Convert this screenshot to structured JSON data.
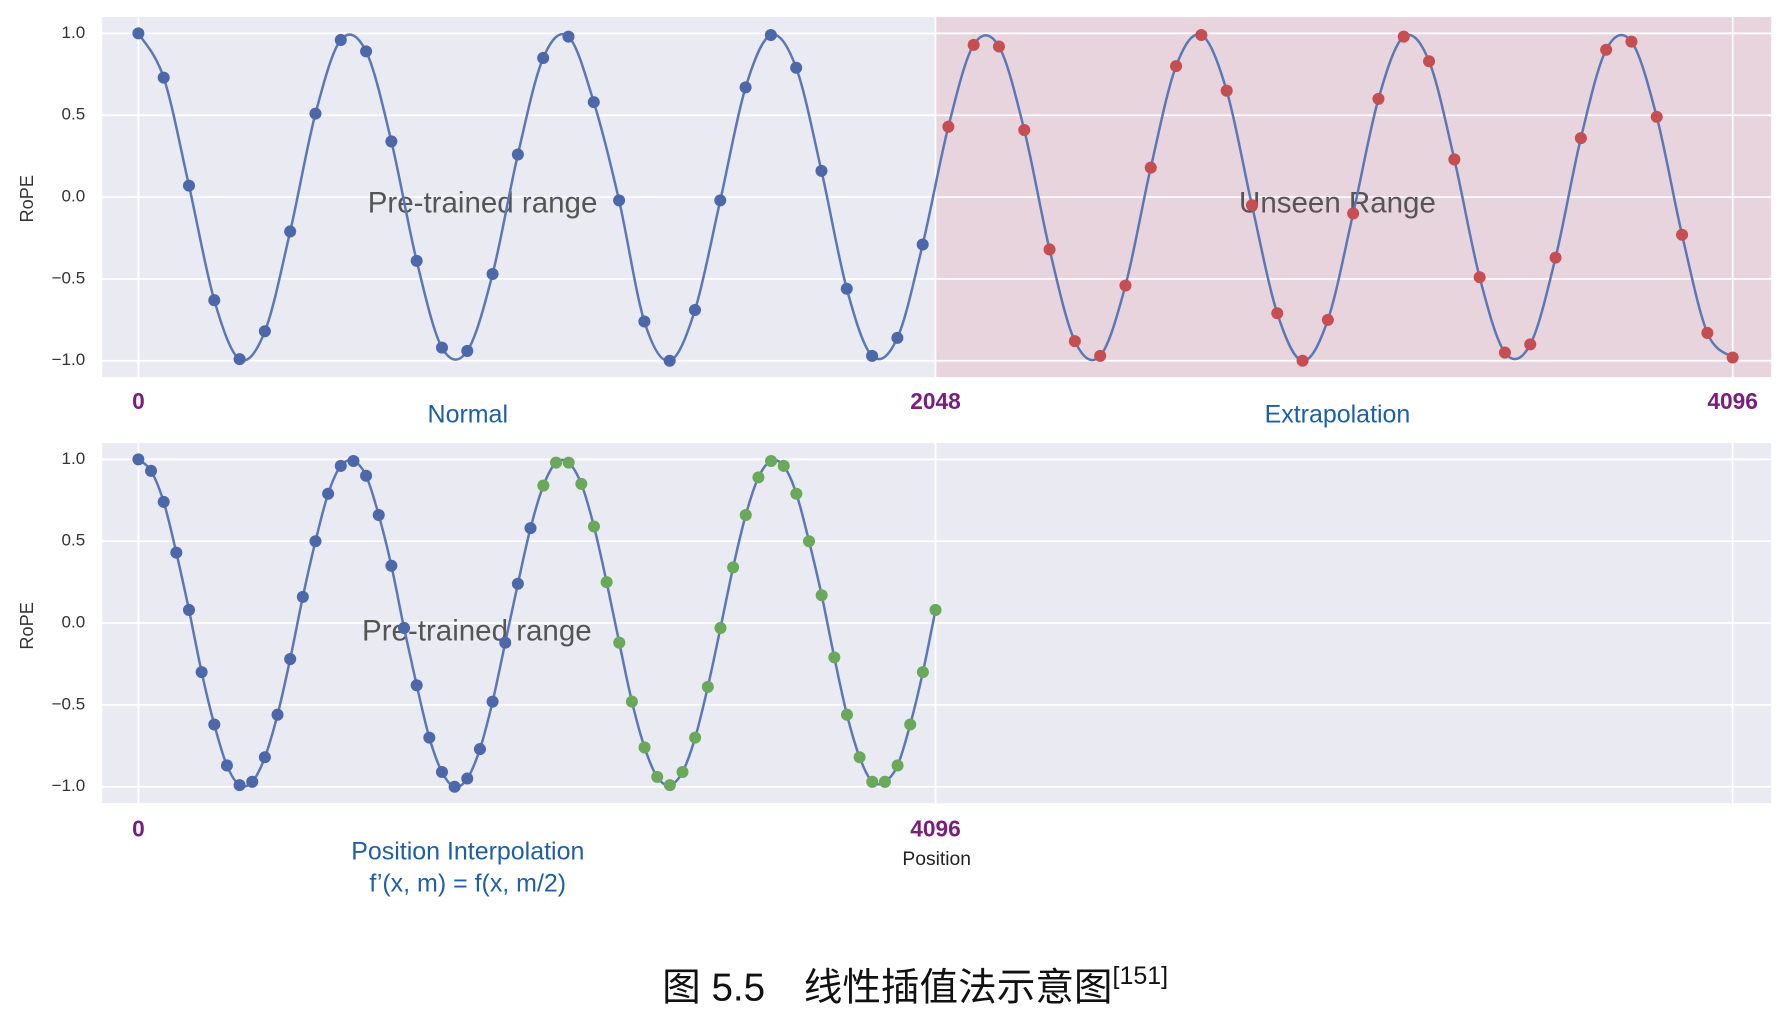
{
  "chart_data": [
    {
      "type": "line",
      "ylabel": "RoPE",
      "xlim": [
        -93,
        4195
      ],
      "ylim": [
        -1.1,
        1.1
      ],
      "xticks": [
        0,
        2048,
        4096
      ],
      "yticks": [
        {
          "value": 1,
          "label": "1.0"
        },
        {
          "value": 0.5,
          "label": "0.5"
        },
        {
          "value": 0,
          "label": "0.0"
        },
        {
          "value": -0.5,
          "label": "−0.5"
        },
        {
          "value": -1,
          "label": "−1.0"
        }
      ],
      "grid": true,
      "line_color": "#5a78b5",
      "highlight": {
        "xrange": [
          2048,
          4195
        ],
        "color": "#e8d0d9"
      },
      "annotations": [
        "Pre-trained range",
        "Unseen Range"
      ],
      "sub_labels": [
        "Normal",
        "Extrapolation"
      ],
      "series": [
        {
          "color": "#4c68a8",
          "x": [
            0,
            65,
            130,
            195,
            260,
            325,
            390,
            455,
            520,
            585,
            650,
            715,
            780,
            845,
            910,
            975,
            1040,
            1105,
            1170,
            1235,
            1300,
            1365,
            1430,
            1495,
            1560,
            1625,
            1690,
            1755,
            1820,
            1885,
            1950,
            2015
          ],
          "values": [
            1.0,
            0.73,
            0.07,
            -0.63,
            -0.99,
            -0.82,
            -0.21,
            0.51,
            0.96,
            0.89,
            0.34,
            -0.39,
            -0.92,
            -0.94,
            -0.47,
            0.26,
            0.85,
            0.98,
            0.58,
            -0.02,
            -0.76,
            -1.0,
            -0.69,
            -0.02,
            0.67,
            0.99,
            0.79,
            0.16,
            -0.56,
            -0.97,
            -0.86,
            -0.29
          ]
        },
        {
          "color": "#c44e52",
          "x": [
            2081,
            2146,
            2211,
            2276,
            2341,
            2406,
            2471,
            2536,
            2601,
            2666,
            2731,
            2796,
            2861,
            2926,
            2991,
            3056,
            3121,
            3186,
            3251,
            3316,
            3381,
            3446,
            3511,
            3576,
            3641,
            3706,
            3771,
            3836,
            3901,
            3966,
            4031,
            4096
          ],
          "values": [
            0.43,
            0.93,
            0.92,
            0.41,
            -0.32,
            -0.88,
            -0.97,
            -0.54,
            0.18,
            0.8,
            0.99,
            0.65,
            -0.05,
            -0.71,
            -1.0,
            -0.75,
            -0.1,
            0.6,
            0.98,
            0.83,
            0.23,
            -0.49,
            -0.95,
            -0.9,
            -0.37,
            0.36,
            0.9,
            0.95,
            0.49,
            -0.23,
            -0.83,
            -0.98
          ]
        }
      ]
    },
    {
      "type": "line",
      "ylabel": "RoPE",
      "xlabel": "Position",
      "xlim": [
        -186,
        8390
      ],
      "ylim": [
        -1.1,
        1.1
      ],
      "xticks": [
        0,
        4096,
        {
          "value": 8192,
          "label": null
        }
      ],
      "yticks": [
        {
          "value": 1,
          "label": "1.0"
        },
        {
          "value": 0.5,
          "label": "0.5"
        },
        {
          "value": 0,
          "label": "0.0"
        },
        {
          "value": -0.5,
          "label": "−0.5"
        },
        {
          "value": -1,
          "label": "−1.0"
        }
      ],
      "grid": true,
      "line_color": "#5a78b5",
      "annotations": [
        "Pre-trained range"
      ],
      "sub_labels": [
        "Position Interpolation",
        "f’(x, m) = f(x, m/2)"
      ],
      "series": [
        {
          "color": "#4c68a8",
          "x": [
            0,
            65,
            130,
            195,
            260,
            325,
            390,
            455,
            520,
            585,
            650,
            715,
            780,
            845,
            910,
            975,
            1040,
            1105,
            1170,
            1235,
            1300,
            1365,
            1430,
            1495,
            1560,
            1625,
            1690,
            1755,
            1820,
            1885,
            1950,
            2015
          ],
          "values": [
            1.0,
            0.93,
            0.74,
            0.43,
            0.08,
            -0.3,
            -0.62,
            -0.87,
            -0.99,
            -0.97,
            -0.82,
            -0.56,
            -0.22,
            0.16,
            0.5,
            0.79,
            0.96,
            0.99,
            0.9,
            0.66,
            0.35,
            -0.03,
            -0.38,
            -0.7,
            -0.91,
            -1.0,
            -0.95,
            -0.77,
            -0.48,
            -0.12,
            0.24,
            0.58
          ]
        },
        {
          "color": "#6aa85a",
          "x": [
            2081,
            2146,
            2211,
            2276,
            2341,
            2406,
            2471,
            2536,
            2601,
            2666,
            2731,
            2796,
            2861,
            2926,
            2991,
            3056,
            3121,
            3186,
            3251,
            3316,
            3381,
            3446,
            3511,
            3576,
            3641,
            3706,
            3771,
            3836,
            3901,
            3966,
            4031,
            4096
          ],
          "values": [
            0.84,
            0.98,
            0.98,
            0.85,
            0.59,
            0.25,
            -0.12,
            -0.48,
            -0.76,
            -0.94,
            -0.99,
            -0.91,
            -0.7,
            -0.39,
            -0.03,
            0.34,
            0.66,
            0.89,
            0.99,
            0.96,
            0.79,
            0.5,
            0.17,
            -0.21,
            -0.56,
            -0.82,
            -0.97,
            -0.97,
            -0.87,
            -0.62,
            -0.3,
            0.08
          ]
        }
      ]
    }
  ],
  "caption": "图 5.5　线性插值法示意图",
  "caption_ref": "[151]"
}
